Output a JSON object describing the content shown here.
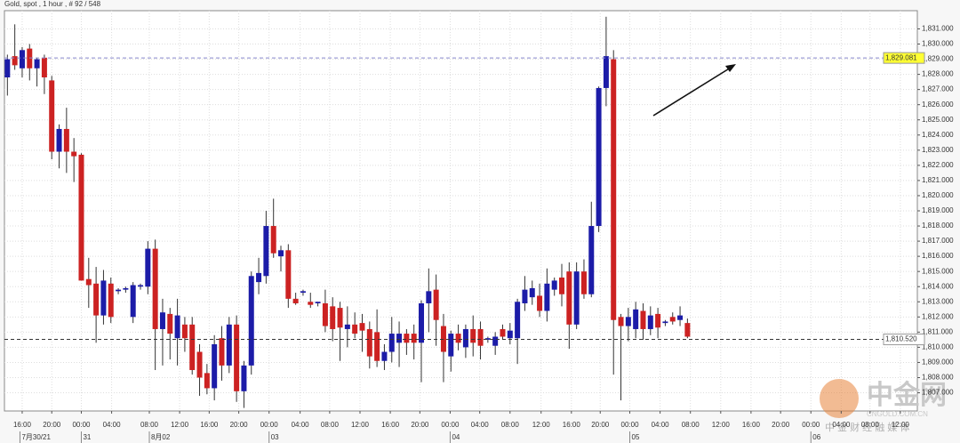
{
  "chart_data": {
    "type": "candlestick",
    "title": "Gold, spot , 1 hour , # 92 / 548",
    "up_color": "#1c1ca8",
    "down_color": "#cc2222",
    "grid": true,
    "open": [
      1827.8,
      1829.2,
      1828.4,
      1829.7,
      1828.4,
      1829.1,
      1827.6,
      1822.9,
      1824.4,
      1822.9,
      1822.7,
      1814.5,
      1814.2,
      1812.1,
      1814.2,
      1813.7,
      1813.8,
      1812.0,
      1814.0,
      1814.0,
      1816.5,
      1811.2,
      1812.2,
      1810.6,
      1811.5,
      1811.5,
      1809.7,
      1808.3,
      1807.3,
      1810.6,
      1808.8,
      1811.5,
      1807.1,
      1808.8,
      1814.3,
      1814.7,
      1818.0,
      1816.0,
      1816.4,
      1813.2,
      1813.6,
      1813.0,
      1812.9,
      1812.9,
      1812.7,
      1812.6,
      1811.2,
      1811.5,
      1811.6,
      1811.2,
      1811.0,
      1809.1,
      1809.7,
      1810.3,
      1810.9,
      1810.9,
      1810.3,
      1812.9,
      1813.8,
      1811.4,
      1809.4,
      1810.9,
      1810.0,
      1811.2,
      1811.2,
      1810.5,
      1810.1,
      1811.2,
      1810.6,
      1810.6,
      1812.9,
      1813.3,
      1813.4,
      1812.4,
      1813.8,
      1814.6,
      1815.0,
      1811.5,
      1815.0,
      1813.5,
      1818.0,
      1827.1,
      1829.0,
      1812.0,
      1811.4,
      1811.2,
      1812.4,
      1811.2,
      1812.2,
      1811.6,
      1812.0,
      1811.8,
      1811.6
    ],
    "high": [
      1829.3,
      1831.3,
      1829.8,
      1830.0,
      1829.1,
      1829.3,
      1827.9,
      1824.7,
      1825.8,
      1823.8,
      1822.8,
      1815.9,
      1815.3,
      1815.1,
      1814.6,
      1813.9,
      1814.0,
      1814.3,
      1814.2,
      1817.0,
      1817.1,
      1813.2,
      1812.6,
      1813.2,
      1812.0,
      1812.0,
      1810.2,
      1808.9,
      1810.8,
      1811.4,
      1812.0,
      1812.1,
      1809.1,
      1815.0,
      1815.9,
      1819.0,
      1819.8,
      1816.7,
      1816.8,
      1813.6,
      1813.8,
      1813.6,
      1813.0,
      1813.8,
      1813.3,
      1813.0,
      1812.7,
      1812.3,
      1812.2,
      1811.7,
      1812.5,
      1810.2,
      1812.0,
      1811.7,
      1811.2,
      1811.5,
      1813.1,
      1815.2,
      1814.8,
      1812.2,
      1811.1,
      1811.5,
      1811.5,
      1812.1,
      1811.7,
      1810.7,
      1811.0,
      1811.5,
      1811.6,
      1813.2,
      1814.7,
      1814.4,
      1814.2,
      1815.2,
      1814.6,
      1815.5,
      1815.6,
      1815.6,
      1815.8,
      1819.6,
      1827.2,
      1831.8,
      1829.6,
      1812.2,
      1812.6,
      1813.0,
      1812.9,
      1812.7,
      1812.6,
      1811.8,
      1812.3,
      1812.7,
      1811.9
    ],
    "low": [
      1826.6,
      1828.3,
      1827.8,
      1827.6,
      1827.2,
      1826.7,
      1822.4,
      1821.8,
      1821.5,
      1820.9,
      1814.4,
      1812.6,
      1810.3,
      1811.5,
      1811.6,
      1813.5,
      1813.6,
      1811.6,
      1813.8,
      1813.5,
      1808.5,
      1808.8,
      1809.2,
      1808.8,
      1809.7,
      1808.2,
      1806.8,
      1806.9,
      1806.5,
      1807.8,
      1808.3,
      1806.4,
      1806.0,
      1808.2,
      1813.5,
      1814.2,
      1815.9,
      1815.0,
      1812.6,
      1812.8,
      1813.4,
      1812.6,
      1812.7,
      1811.0,
      1810.4,
      1809.1,
      1810.0,
      1810.6,
      1809.7,
      1808.6,
      1808.7,
      1808.5,
      1809.0,
      1808.7,
      1809.5,
      1809.2,
      1807.7,
      1811.0,
      1810.1,
      1807.7,
      1808.4,
      1809.8,
      1809.3,
      1809.4,
      1809.2,
      1810.3,
      1809.5,
      1810.5,
      1810.2,
      1808.9,
      1812.4,
      1812.8,
      1812.0,
      1811.7,
      1813.4,
      1812.7,
      1809.9,
      1811.2,
      1813.2,
      1813.3,
      1817.6,
      1825.9,
      1808.2,
      1806.5,
      1810.4,
      1810.6,
      1810.5,
      1810.8,
      1810.6,
      1811.4,
      1811.5,
      1811.4,
      1810.6
    ],
    "close": [
      1829.0,
      1828.6,
      1829.6,
      1828.4,
      1829.0,
      1827.8,
      1822.9,
      1824.4,
      1822.9,
      1822.6,
      1814.4,
      1814.1,
      1812.1,
      1814.4,
      1812.0,
      1813.8,
      1813.9,
      1814.1,
      1814.1,
      1816.5,
      1811.2,
      1812.3,
      1810.9,
      1812.1,
      1810.6,
      1808.5,
      1808.0,
      1807.3,
      1810.2,
      1808.8,
      1811.5,
      1807.1,
      1808.8,
      1814.7,
      1814.9,
      1818.0,
      1816.2,
      1816.4,
      1813.2,
      1812.9,
      1813.7,
      1812.8,
      1813.0,
      1811.4,
      1811.2,
      1811.3,
      1811.5,
      1810.9,
      1811.1,
      1809.4,
      1809.1,
      1809.7,
      1810.9,
      1810.9,
      1810.3,
      1810.3,
      1812.9,
      1813.7,
      1811.8,
      1809.7,
      1810.9,
      1810.3,
      1811.2,
      1810.3,
      1810.1,
      1810.6,
      1810.7,
      1810.7,
      1811.1,
      1813.0,
      1813.8,
      1813.9,
      1812.4,
      1814.2,
      1814.4,
      1813.5,
      1811.5,
      1815.0,
      1813.5,
      1818.0,
      1827.1,
      1829.2,
      1811.8,
      1811.4,
      1812.0,
      1812.5,
      1811.2,
      1812.1,
      1811.3,
      1811.7,
      1811.7,
      1812.1,
      1810.7
    ],
    "xlim": [
      -0.4,
      123.1
    ],
    "ylim": [
      1805.8,
      1832.2
    ],
    "xticks": [
      {
        "value": 2,
        "label": "16:00"
      },
      {
        "value": 6,
        "label": "20:00"
      },
      {
        "value": 10,
        "label": "00:00"
      },
      {
        "value": 14.1,
        "label": "04:00"
      },
      {
        "value": 19.2,
        "label": "08:00"
      },
      {
        "value": 23.3,
        "label": "12:00"
      },
      {
        "value": 27.3,
        "label": "16:00"
      },
      {
        "value": 31.3,
        "label": "20:00"
      },
      {
        "value": 35.4,
        "label": "00:00"
      },
      {
        "value": 39.6,
        "label": "04:00"
      },
      {
        "value": 43.6,
        "label": "08:00"
      },
      {
        "value": 47.7,
        "label": "12:00"
      },
      {
        "value": 51.8,
        "label": "16:00"
      },
      {
        "value": 55.8,
        "label": "20:00"
      },
      {
        "value": 59.9,
        "label": "00:00"
      },
      {
        "value": 63.9,
        "label": "04:00"
      },
      {
        "value": 68,
        "label": "08:00"
      },
      {
        "value": 72.2,
        "label": "12:00"
      },
      {
        "value": 76.3,
        "label": "16:00"
      },
      {
        "value": 80.2,
        "label": "20:00"
      },
      {
        "value": 84.2,
        "label": "00:00"
      },
      {
        "value": 88.3,
        "label": "04:00"
      },
      {
        "value": 92.4,
        "label": "08:00"
      },
      {
        "value": 96.5,
        "label": "12:00"
      },
      {
        "value": 100.6,
        "label": "16:00"
      },
      {
        "value": 104.6,
        "label": "20:00"
      },
      {
        "value": 108.7,
        "label": "00:00"
      },
      {
        "value": 112.8,
        "label": "04:00"
      },
      {
        "value": 116.7,
        "label": "08:00"
      },
      {
        "value": 120.8,
        "label": "12:00"
      }
    ],
    "date_ticks": [
      {
        "value": 1.7,
        "label": "7月30/21"
      },
      {
        "value": 10,
        "label": "31"
      },
      {
        "value": 19.2,
        "label": "8月02"
      },
      {
        "value": 35.4,
        "label": "03"
      },
      {
        "value": 59.9,
        "label": "04"
      },
      {
        "value": 84.2,
        "label": "05"
      },
      {
        "value": 108.7,
        "label": "06"
      }
    ],
    "yticks": [
      {
        "value": 1807,
        "label": "1,807.000"
      },
      {
        "value": 1808,
        "label": "1,808.000"
      },
      {
        "value": 1809,
        "label": "1,809.000"
      },
      {
        "value": 1810,
        "label": "1,810.000"
      },
      {
        "value": 1811,
        "label": "1,811.000"
      },
      {
        "value": 1812,
        "label": "1,812.000"
      },
      {
        "value": 1813,
        "label": "1,813.000"
      },
      {
        "value": 1814,
        "label": "1,814.000"
      },
      {
        "value": 1815,
        "label": "1,815.000"
      },
      {
        "value": 1816,
        "label": "1,816.000"
      },
      {
        "value": 1817,
        "label": "1,817.000"
      },
      {
        "value": 1818,
        "label": "1,818.000"
      },
      {
        "value": 1819,
        "label": "1,819.000"
      },
      {
        "value": 1820,
        "label": "1,820.000"
      },
      {
        "value": 1821,
        "label": "1,821.000"
      },
      {
        "value": 1822,
        "label": "1,822.000"
      },
      {
        "value": 1823,
        "label": "1,823.000"
      },
      {
        "value": 1824,
        "label": "1,824.000"
      },
      {
        "value": 1825,
        "label": "1,825.000"
      },
      {
        "value": 1826,
        "label": "1,826.000"
      },
      {
        "value": 1827,
        "label": "1,827.000"
      },
      {
        "value": 1828,
        "label": "1,828.000"
      },
      {
        "value": 1829,
        "label": "1,829.000"
      },
      {
        "value": 1830,
        "label": "1,830.000"
      },
      {
        "value": 1831,
        "label": "1,831.000"
      }
    ],
    "reference_lines": [
      {
        "value": 1829.081,
        "label": "1,829.081",
        "color": "#8888cc",
        "label_color": "#ffff33"
      },
      {
        "value": 1810.52,
        "label": "1,810.520",
        "color": "#333333",
        "label_color": "#ffffff"
      }
    ],
    "watermark": {
      "brand": "中金网",
      "site": "CNGOLD.COM.CN",
      "slogan": "中 金 财 经 融 媒 体"
    }
  }
}
